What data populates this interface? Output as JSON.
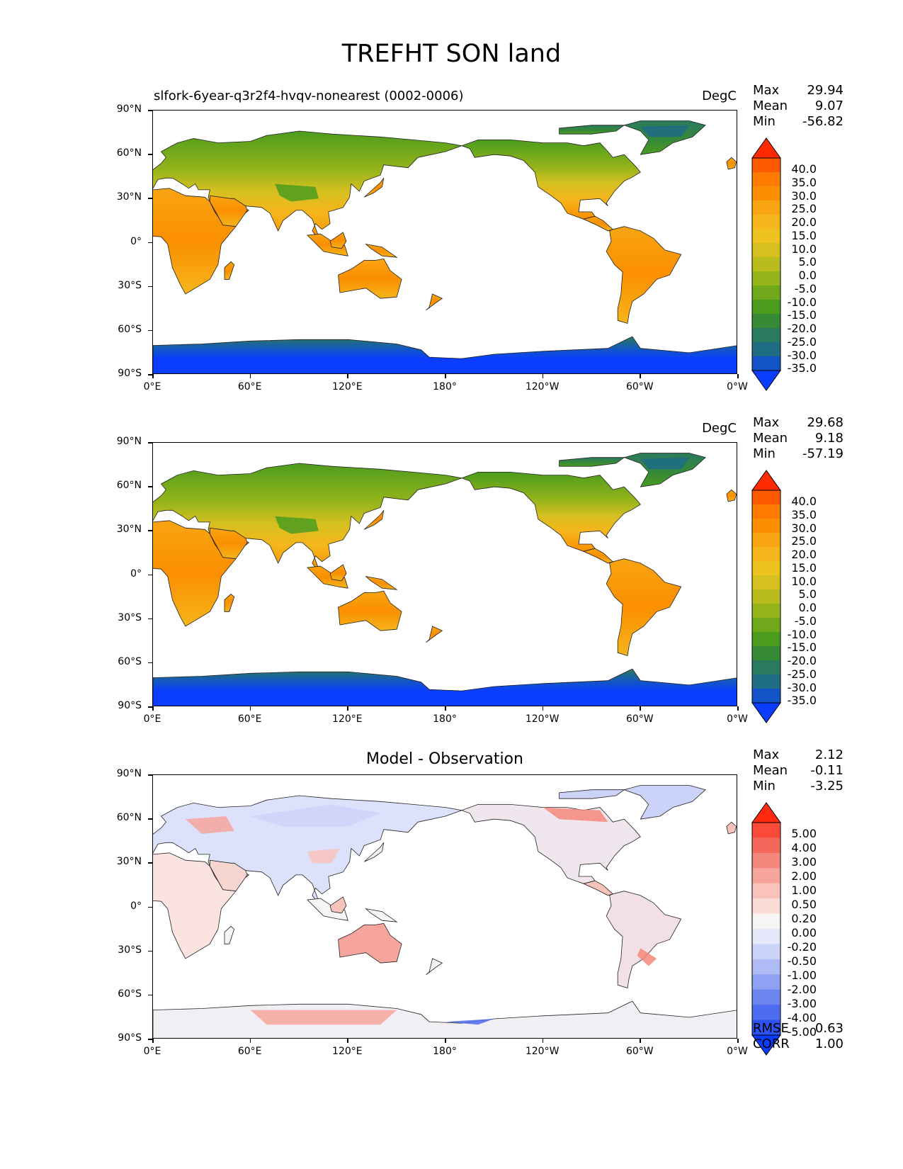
{
  "title": "TREFHT SON land",
  "panels": [
    {
      "left_title": "slfork-6year-q3r2f4-hvqv-nonearest (0002-0006)",
      "center_title": "",
      "units": "DegC",
      "stats": {
        "max_label": "Max",
        "max": "29.94",
        "mean_label": "Mean",
        "mean": "9.07",
        "min_label": "Min",
        "min": "-56.82"
      }
    },
    {
      "left_title": "",
      "center_title": "",
      "units": "DegC",
      "stats": {
        "max_label": "Max",
        "max": "29.68",
        "mean_label": "Mean",
        "mean": "9.18",
        "min_label": "Min",
        "min": "-57.19"
      }
    },
    {
      "left_title": "",
      "center_title": "Model - Observation",
      "units": "",
      "stats": {
        "max_label": "Max",
        "max": "2.12",
        "mean_label": "Mean",
        "mean": "-0.11",
        "min_label": "Min",
        "min": "-3.25"
      },
      "rmse_label": "RMSE",
      "rmse": "0.63",
      "corr_label": "CORR",
      "corr": "1.00"
    }
  ],
  "lat_ticks": [
    "90°N",
    "60°N",
    "30°N",
    "0°",
    "30°S",
    "60°S",
    "90°S"
  ],
  "lon_ticks": [
    "0°E",
    "60°E",
    "120°E",
    "180°",
    "120°W",
    "60°W",
    "0°W"
  ],
  "colorbar_field": {
    "labels": [
      "40.0",
      "35.0",
      "30.0",
      "25.0",
      "20.0",
      "15.0",
      "10.0",
      "5.0",
      "0.0",
      "-5.0",
      "-10.0",
      "-15.0",
      "-20.0",
      "-25.0",
      "-30.0",
      "-35.0"
    ],
    "colors": [
      "#ff2a00",
      "#ff5a00",
      "#ff7a00",
      "#fb8f00",
      "#f9a412",
      "#f6b51c",
      "#eec21f",
      "#d6c020",
      "#b8bc1c",
      "#95b41a",
      "#6fa81a",
      "#4c9c1e",
      "#368a36",
      "#2a7a5e",
      "#1f6d82",
      "#1254c8",
      "#0a3dff"
    ]
  },
  "colorbar_diff": {
    "labels": [
      "5.00",
      "4.00",
      "3.00",
      "2.00",
      "1.00",
      "0.50",
      "0.20",
      "0.00",
      "-0.20",
      "-0.50",
      "-1.00",
      "-2.00",
      "-3.00",
      "-4.00",
      "-5.00"
    ],
    "colors": [
      "#ff2a10",
      "#f94a3a",
      "#f4685c",
      "#f4877c",
      "#f6a59c",
      "#f9c3bb",
      "#fbdcd6",
      "#f7f4f4",
      "#e6e8fb",
      "#ccd3f8",
      "#aebbf5",
      "#8ea1f2",
      "#6d86ef",
      "#4d6cf0",
      "#2c52f4",
      "#0a3dff"
    ]
  },
  "icons": {
    "colorbar_top": "triangle-up",
    "colorbar_bottom": "triangle-down"
  }
}
